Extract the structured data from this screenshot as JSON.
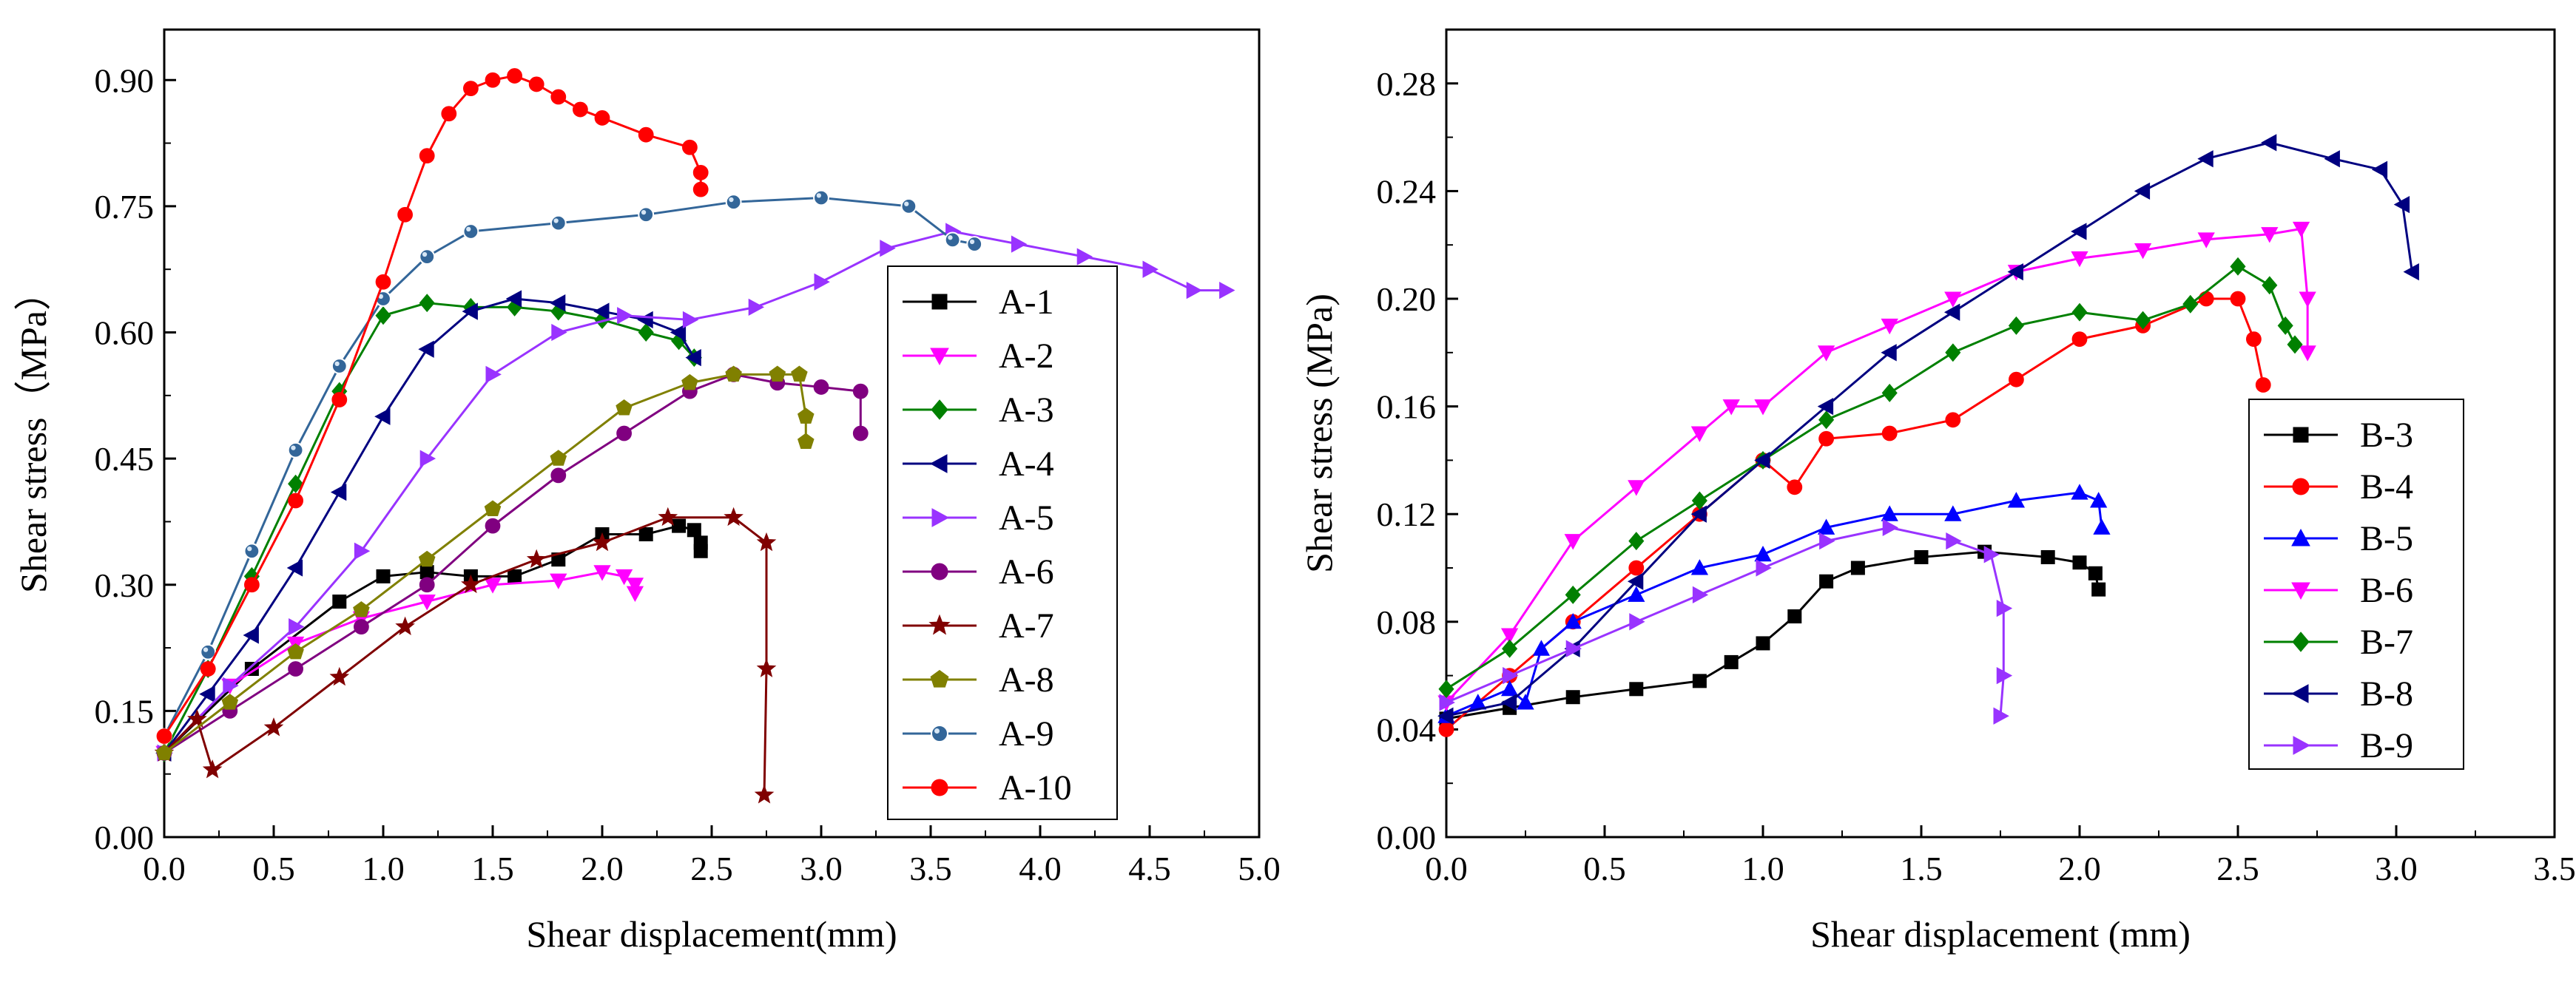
{
  "chart_data": [
    {
      "id": "panel-a",
      "type": "line",
      "title": "",
      "xlabel": "Shear displacement(mm)",
      "ylabel": "Shear stress（MPa）",
      "xlim": [
        0,
        5
      ],
      "ylim": [
        0,
        0.96
      ],
      "xticks": [
        "0.0",
        "0.5",
        "1.0",
        "1.5",
        "2.0",
        "2.5",
        "3.0",
        "3.5",
        "4.0",
        "4.5",
        "5.0"
      ],
      "yticks": [
        "0.00",
        "0.15",
        "0.30",
        "0.45",
        "0.60",
        "0.75",
        "0.90"
      ],
      "legend_position": "right",
      "series": [
        {
          "name": "A-1",
          "color": "#000000",
          "marker": "square",
          "x": [
            0.0,
            0.4,
            0.8,
            1.0,
            1.2,
            1.4,
            1.6,
            1.8,
            2.0,
            2.2,
            2.35,
            2.42,
            2.45,
            2.45
          ],
          "y": [
            0.1,
            0.2,
            0.28,
            0.31,
            0.315,
            0.31,
            0.31,
            0.33,
            0.36,
            0.36,
            0.37,
            0.365,
            0.35,
            0.34
          ]
        },
        {
          "name": "A-2",
          "color": "#ff00ff",
          "marker": "triangle-down",
          "x": [
            0.0,
            0.3,
            0.6,
            0.9,
            1.2,
            1.5,
            1.8,
            2.0,
            2.1,
            2.15,
            2.15
          ],
          "y": [
            0.1,
            0.18,
            0.23,
            0.26,
            0.28,
            0.3,
            0.305,
            0.315,
            0.31,
            0.3,
            0.29
          ]
        },
        {
          "name": "A-3",
          "color": "#008000",
          "marker": "diamond",
          "x": [
            0.0,
            0.2,
            0.4,
            0.6,
            0.8,
            1.0,
            1.2,
            1.4,
            1.6,
            1.8,
            2.0,
            2.2,
            2.35,
            2.42
          ],
          "y": [
            0.1,
            0.2,
            0.31,
            0.42,
            0.53,
            0.62,
            0.635,
            0.63,
            0.63,
            0.625,
            0.615,
            0.6,
            0.59,
            0.57
          ]
        },
        {
          "name": "A-4",
          "color": "#000080",
          "marker": "triangle-left",
          "x": [
            0.0,
            0.2,
            0.4,
            0.6,
            0.8,
            1.0,
            1.2,
            1.4,
            1.6,
            1.8,
            2.0,
            2.2,
            2.35,
            2.42
          ],
          "y": [
            0.1,
            0.17,
            0.24,
            0.32,
            0.41,
            0.5,
            0.58,
            0.625,
            0.64,
            0.635,
            0.625,
            0.615,
            0.6,
            0.57
          ]
        },
        {
          "name": "A-5",
          "color": "#9933ff",
          "marker": "triangle-right",
          "x": [
            0.0,
            0.3,
            0.6,
            0.9,
            1.2,
            1.5,
            1.8,
            2.1,
            2.4,
            2.7,
            3.0,
            3.3,
            3.6,
            3.9,
            4.2,
            4.5,
            4.7,
            4.85
          ],
          "y": [
            0.1,
            0.18,
            0.25,
            0.34,
            0.45,
            0.55,
            0.6,
            0.62,
            0.615,
            0.63,
            0.66,
            0.7,
            0.72,
            0.705,
            0.69,
            0.675,
            0.65,
            0.65
          ]
        },
        {
          "name": "A-6",
          "color": "#800080",
          "marker": "circle",
          "x": [
            0.0,
            0.3,
            0.6,
            0.9,
            1.2,
            1.5,
            1.8,
            2.1,
            2.4,
            2.6,
            2.8,
            3.0,
            3.18,
            3.18
          ],
          "y": [
            0.1,
            0.15,
            0.2,
            0.25,
            0.3,
            0.37,
            0.43,
            0.48,
            0.53,
            0.55,
            0.54,
            0.535,
            0.53,
            0.48
          ]
        },
        {
          "name": "A-7",
          "color": "#800000",
          "marker": "star",
          "x": [
            0.0,
            0.15,
            0.22,
            0.5,
            0.8,
            1.1,
            1.4,
            1.7,
            2.0,
            2.3,
            2.6,
            2.75,
            2.75,
            2.74
          ],
          "y": [
            0.1,
            0.14,
            0.08,
            0.13,
            0.19,
            0.25,
            0.3,
            0.33,
            0.35,
            0.38,
            0.38,
            0.35,
            0.2,
            0.05
          ]
        },
        {
          "name": "A-8",
          "color": "#808000",
          "marker": "pentagon",
          "x": [
            0.0,
            0.3,
            0.6,
            0.9,
            1.2,
            1.5,
            1.8,
            2.1,
            2.4,
            2.6,
            2.8,
            2.9,
            2.93,
            2.93
          ],
          "y": [
            0.1,
            0.16,
            0.22,
            0.27,
            0.33,
            0.39,
            0.45,
            0.51,
            0.54,
            0.55,
            0.55,
            0.55,
            0.5,
            0.47
          ]
        },
        {
          "name": "A-9",
          "color": "#336699",
          "marker": "sphere",
          "x": [
            0.0,
            0.2,
            0.4,
            0.6,
            0.8,
            1.0,
            1.2,
            1.4,
            1.8,
            2.2,
            2.6,
            3.0,
            3.4,
            3.6,
            3.7
          ],
          "y": [
            0.12,
            0.22,
            0.34,
            0.46,
            0.56,
            0.64,
            0.69,
            0.72,
            0.73,
            0.74,
            0.755,
            0.76,
            0.75,
            0.71,
            0.705
          ]
        },
        {
          "name": "A-10",
          "color": "#ff0000",
          "marker": "circle",
          "x": [
            0.0,
            0.2,
            0.4,
            0.6,
            0.8,
            1.0,
            1.1,
            1.2,
            1.3,
            1.4,
            1.5,
            1.6,
            1.7,
            1.8,
            1.9,
            2.0,
            2.2,
            2.4,
            2.45,
            2.45
          ],
          "y": [
            0.12,
            0.2,
            0.3,
            0.4,
            0.52,
            0.66,
            0.74,
            0.81,
            0.86,
            0.89,
            0.9,
            0.905,
            0.895,
            0.88,
            0.865,
            0.855,
            0.835,
            0.82,
            0.79,
            0.77
          ]
        }
      ]
    },
    {
      "id": "panel-b",
      "type": "line",
      "title": "",
      "xlabel": "Shear displacement (mm)",
      "ylabel": "Shear stress (MPa)",
      "xlim": [
        0,
        3.5
      ],
      "ylim": [
        0,
        0.3
      ],
      "xticks": [
        "0.0",
        "0.5",
        "1.0",
        "1.5",
        "2.0",
        "2.5",
        "3.0",
        "3.5"
      ],
      "yticks": [
        "0.00",
        "0.04",
        "0.08",
        "0.12",
        "0.16",
        "0.20",
        "0.24",
        "0.28"
      ],
      "legend_position": "right",
      "series": [
        {
          "name": "B-3",
          "color": "#000000",
          "marker": "square",
          "x": [
            0.0,
            0.2,
            0.4,
            0.6,
            0.8,
            0.9,
            1.0,
            1.1,
            1.2,
            1.3,
            1.5,
            1.7,
            1.9,
            2.0,
            2.05,
            2.06
          ],
          "y": [
            0.044,
            0.048,
            0.052,
            0.055,
            0.058,
            0.065,
            0.072,
            0.082,
            0.095,
            0.1,
            0.104,
            0.106,
            0.104,
            0.102,
            0.098,
            0.092
          ]
        },
        {
          "name": "B-4",
          "color": "#ff0000",
          "marker": "circle",
          "x": [
            0.0,
            0.2,
            0.4,
            0.6,
            0.8,
            1.0,
            1.1,
            1.2,
            1.4,
            1.6,
            1.8,
            2.0,
            2.2,
            2.4,
            2.5,
            2.55,
            2.58
          ],
          "y": [
            0.04,
            0.06,
            0.08,
            0.1,
            0.12,
            0.14,
            0.13,
            0.148,
            0.15,
            0.155,
            0.17,
            0.185,
            0.19,
            0.2,
            0.2,
            0.185,
            0.168
          ]
        },
        {
          "name": "B-5",
          "color": "#0000ff",
          "marker": "triangle-up",
          "x": [
            0.0,
            0.1,
            0.2,
            0.25,
            0.3,
            0.4,
            0.6,
            0.8,
            1.0,
            1.2,
            1.4,
            1.6,
            1.8,
            2.0,
            2.06,
            2.07
          ],
          "y": [
            0.045,
            0.05,
            0.055,
            0.05,
            0.07,
            0.08,
            0.09,
            0.1,
            0.105,
            0.115,
            0.12,
            0.12,
            0.125,
            0.128,
            0.125,
            0.115
          ]
        },
        {
          "name": "B-6",
          "color": "#ff00ff",
          "marker": "triangle-down",
          "x": [
            0.0,
            0.2,
            0.4,
            0.6,
            0.8,
            0.9,
            1.0,
            1.2,
            1.4,
            1.6,
            1.8,
            2.0,
            2.2,
            2.4,
            2.6,
            2.7,
            2.72,
            2.72
          ],
          "y": [
            0.05,
            0.075,
            0.11,
            0.13,
            0.15,
            0.16,
            0.16,
            0.18,
            0.19,
            0.2,
            0.21,
            0.215,
            0.218,
            0.222,
            0.224,
            0.226,
            0.2,
            0.18
          ]
        },
        {
          "name": "B-7",
          "color": "#008000",
          "marker": "diamond",
          "x": [
            0.0,
            0.2,
            0.4,
            0.6,
            0.8,
            1.0,
            1.2,
            1.4,
            1.6,
            1.8,
            2.0,
            2.2,
            2.35,
            2.5,
            2.6,
            2.65,
            2.68
          ],
          "y": [
            0.055,
            0.07,
            0.09,
            0.11,
            0.125,
            0.14,
            0.155,
            0.165,
            0.18,
            0.19,
            0.195,
            0.192,
            0.198,
            0.212,
            0.205,
            0.19,
            0.183
          ]
        },
        {
          "name": "B-8",
          "color": "#000080",
          "marker": "triangle-left",
          "x": [
            0.0,
            0.2,
            0.4,
            0.6,
            0.8,
            1.0,
            1.2,
            1.4,
            1.6,
            1.8,
            2.0,
            2.2,
            2.4,
            2.6,
            2.8,
            2.95,
            3.02,
            3.05
          ],
          "y": [
            0.045,
            0.05,
            0.07,
            0.095,
            0.12,
            0.14,
            0.16,
            0.18,
            0.195,
            0.21,
            0.225,
            0.24,
            0.252,
            0.258,
            0.252,
            0.248,
            0.235,
            0.21
          ]
        },
        {
          "name": "B-9",
          "color": "#9933ff",
          "marker": "triangle-right",
          "x": [
            0.0,
            0.2,
            0.4,
            0.6,
            0.8,
            1.0,
            1.2,
            1.4,
            1.6,
            1.72,
            1.76,
            1.76,
            1.75
          ],
          "y": [
            0.05,
            0.06,
            0.07,
            0.08,
            0.09,
            0.1,
            0.11,
            0.115,
            0.11,
            0.105,
            0.085,
            0.06,
            0.045
          ]
        }
      ]
    }
  ]
}
